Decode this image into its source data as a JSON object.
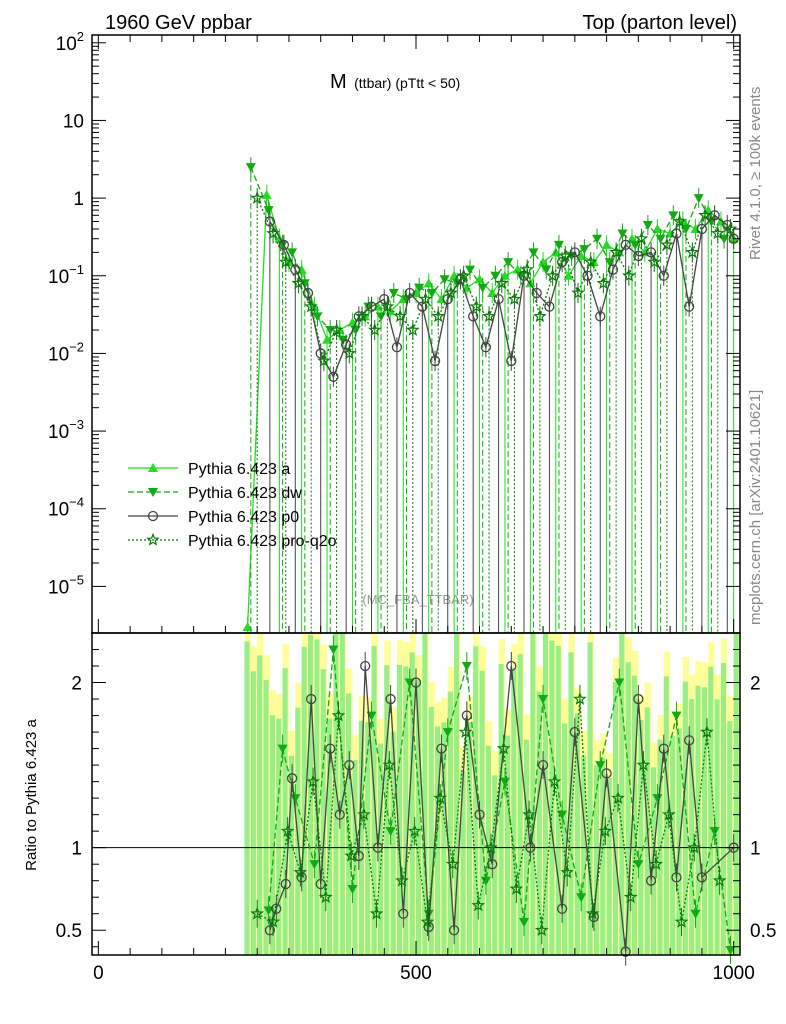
{
  "header": {
    "left_title": "1960 GeV ppbar",
    "right_title": "Top (parton level)"
  },
  "side_labels": {
    "rivet": "Rivet 4.1.0, ≥ 100k events",
    "mcplots": "mcplots.cern.ch [arXiv:2401.10621]"
  },
  "chart_data": {
    "type": "line",
    "title_main": "M",
    "title_sub": "(ttbar) (pTtt < 50)",
    "watermark": "(MC_FBA_TTBAR)",
    "xlabel": "",
    "ylabel_ratio": "Ratio to Pythia 6.423 a",
    "xlim": [
      -10,
      1010
    ],
    "main_ylim_log10": [
      -5.6,
      2.1
    ],
    "ratio_ylim": [
      0.35,
      2.3
    ],
    "x_ticks": [
      0,
      500,
      1000
    ],
    "x_tick_labels": [
      "0",
      "500",
      "1000"
    ],
    "main_y_ticks": [
      {
        "exp": 2,
        "base": "10",
        "sup": "2"
      },
      {
        "exp": 1,
        "base": "10",
        "sup": ""
      },
      {
        "exp": 0,
        "base": "1",
        "sup": ""
      },
      {
        "exp": -1,
        "base": "10",
        "sup": "−1"
      },
      {
        "exp": -2,
        "base": "10",
        "sup": "−2"
      },
      {
        "exp": -3,
        "base": "10",
        "sup": "−3"
      },
      {
        "exp": -4,
        "base": "10",
        "sup": "−4"
      },
      {
        "exp": -5,
        "base": "10",
        "sup": "−5"
      }
    ],
    "ratio_y_ticks": [
      0.5,
      1,
      2
    ],
    "ratio_y_tick_labels": [
      "0.5",
      "1",
      "2"
    ],
    "legend_position": "lower-left",
    "series": [
      {
        "name": "Pythia 6.423 a",
        "color": "#22dd22",
        "marker": "triangle-up",
        "dash": "solid",
        "x": [
          235,
          265,
          285,
          300,
          320,
          340,
          360,
          380,
          400,
          420,
          440,
          460,
          480,
          500,
          520,
          540,
          560,
          580,
          600,
          620,
          640,
          660,
          680,
          700,
          720,
          740,
          760,
          780,
          800,
          820,
          840,
          860,
          880,
          900,
          920,
          940,
          960,
          980,
          1000
        ],
        "y": [
          3e-06,
          1.1,
          0.3,
          0.15,
          0.12,
          0.04,
          0.015,
          0.02,
          0.025,
          0.03,
          0.04,
          0.035,
          0.05,
          0.06,
          0.08,
          0.05,
          0.1,
          0.07,
          0.09,
          0.06,
          0.1,
          0.12,
          0.08,
          0.15,
          0.2,
          0.1,
          0.18,
          0.15,
          0.25,
          0.2,
          0.3,
          0.2,
          0.4,
          0.35,
          0.5,
          0.4,
          0.7,
          0.5,
          0.3
        ]
      },
      {
        "name": "Pythia 6.423 dw",
        "color": "#11aa11",
        "marker": "triangle-down",
        "dash": "dashed",
        "x": [
          240,
          268,
          290,
          305,
          325,
          345,
          365,
          385,
          405,
          425,
          445,
          465,
          485,
          505,
          525,
          545,
          565,
          585,
          605,
          625,
          645,
          665,
          685,
          705,
          725,
          745,
          765,
          785,
          805,
          825,
          845,
          865,
          885,
          905,
          925,
          945,
          965,
          985
        ],
        "y": [
          2.5,
          0.7,
          0.25,
          0.2,
          0.08,
          0.03,
          0.02,
          0.015,
          0.02,
          0.04,
          0.03,
          0.06,
          0.05,
          0.07,
          0.06,
          0.09,
          0.08,
          0.12,
          0.07,
          0.1,
          0.15,
          0.1,
          0.2,
          0.12,
          0.25,
          0.18,
          0.22,
          0.3,
          0.15,
          0.35,
          0.25,
          0.45,
          0.3,
          0.6,
          0.4,
          1.0,
          0.5,
          0.3
        ]
      },
      {
        "name": "Pythia 6.423 p0",
        "color": "#444444",
        "marker": "circle-open",
        "dash": "solid",
        "x": [
          270,
          292,
          310,
          330,
          350,
          370,
          390,
          410,
          430,
          450,
          470,
          490,
          510,
          530,
          550,
          570,
          590,
          610,
          630,
          650,
          670,
          690,
          710,
          730,
          750,
          770,
          790,
          810,
          830,
          850,
          870,
          890,
          910,
          930,
          950,
          970,
          990,
          1000
        ],
        "y": [
          0.5,
          0.25,
          0.12,
          0.06,
          0.01,
          0.005,
          0.013,
          0.03,
          0.04,
          0.05,
          0.012,
          0.06,
          0.04,
          0.008,
          0.05,
          0.09,
          0.03,
          0.012,
          0.05,
          0.008,
          0.1,
          0.06,
          0.04,
          0.15,
          0.2,
          0.1,
          0.03,
          0.12,
          0.25,
          0.18,
          0.2,
          0.1,
          0.35,
          0.04,
          0.4,
          0.6,
          0.45,
          0.3
        ]
      },
      {
        "name": "Pythia 6.423 pro-q2o",
        "color": "#0a7a0a",
        "marker": "star",
        "dash": "dotted",
        "x": [
          250,
          275,
          295,
          315,
          335,
          355,
          375,
          395,
          415,
          435,
          455,
          475,
          495,
          515,
          535,
          555,
          575,
          595,
          615,
          635,
          655,
          675,
          695,
          715,
          735,
          755,
          775,
          795,
          815,
          835,
          855,
          875,
          895,
          915,
          935,
          955,
          975,
          995
        ],
        "y": [
          1.0,
          0.35,
          0.15,
          0.08,
          0.04,
          0.008,
          0.02,
          0.01,
          0.03,
          0.02,
          0.04,
          0.03,
          0.02,
          0.05,
          0.03,
          0.06,
          0.1,
          0.04,
          0.03,
          0.08,
          0.05,
          0.12,
          0.03,
          0.1,
          0.18,
          0.06,
          0.15,
          0.08,
          0.2,
          0.1,
          0.3,
          0.15,
          0.25,
          0.5,
          0.2,
          0.6,
          0.35,
          0.4
        ]
      }
    ],
    "ratio_series": [
      {
        "name": "Pythia 6.423 dw",
        "x": [
          268,
          290,
          310,
          340,
          370,
          400,
          430,
          460,
          490,
          520,
          550,
          580,
          610,
          640,
          670,
          700,
          730,
          760,
          790,
          820,
          850,
          880,
          910,
          940,
          970,
          995
        ],
        "y": [
          0.62,
          1.6,
          1.3,
          0.9,
          2.2,
          0.75,
          1.8,
          1.1,
          2.0,
          0.6,
          1.7,
          2.1,
          0.8,
          1.4,
          0.55,
          1.9,
          1.2,
          0.7,
          1.5,
          2.0,
          0.9,
          1.3,
          1.8,
          0.6,
          1.1,
          0.38
        ]
      },
      {
        "name": "Pythia 6.423 p0",
        "x": [
          270,
          280,
          295,
          305,
          320,
          335,
          350,
          365,
          380,
          395,
          410,
          420,
          440,
          460,
          480,
          500,
          520,
          540,
          560,
          580,
          600,
          620,
          650,
          680,
          700,
          730,
          750,
          780,
          800,
          830,
          850,
          870,
          890,
          910,
          930,
          950,
          1000
        ],
        "y": [
          0.5,
          0.63,
          0.78,
          1.42,
          0.82,
          1.9,
          0.78,
          1.6,
          1.2,
          1.5,
          0.95,
          2.1,
          1.0,
          1.9,
          0.6,
          2.0,
          0.52,
          1.6,
          0.5,
          1.8,
          1.2,
          0.9,
          2.1,
          1.0,
          1.5,
          0.63,
          1.7,
          0.58,
          1.45,
          0.37,
          1.9,
          0.8,
          1.6,
          0.82,
          1.65,
          0.82,
          1.0
        ]
      },
      {
        "name": "Pythia 6.423 pro-q2o",
        "x": [
          250,
          275,
          298,
          318,
          338,
          358,
          378,
          398,
          418,
          438,
          458,
          478,
          498,
          518,
          538,
          558,
          578,
          598,
          618,
          638,
          658,
          678,
          698,
          718,
          738,
          758,
          778,
          798,
          818,
          838,
          858,
          878,
          898,
          918,
          938,
          958,
          978
        ],
        "y": [
          0.6,
          0.55,
          1.1,
          0.85,
          1.4,
          0.7,
          1.8,
          0.95,
          1.2,
          0.6,
          1.5,
          0.8,
          1.1,
          0.55,
          1.3,
          0.9,
          1.7,
          0.65,
          1.0,
          1.6,
          0.75,
          1.2,
          0.5,
          1.4,
          0.85,
          1.9,
          0.6,
          1.1,
          1.3,
          0.7,
          1.5,
          0.9,
          1.2,
          0.55,
          1.0,
          1.7,
          0.8
        ]
      }
    ]
  },
  "legend": {
    "items": [
      {
        "label": "Pythia 6.423 a"
      },
      {
        "label": "Pythia 6.423 dw"
      },
      {
        "label": "Pythia 6.423 p0"
      },
      {
        "label": "Pythia 6.423 pro-q2o"
      }
    ]
  }
}
